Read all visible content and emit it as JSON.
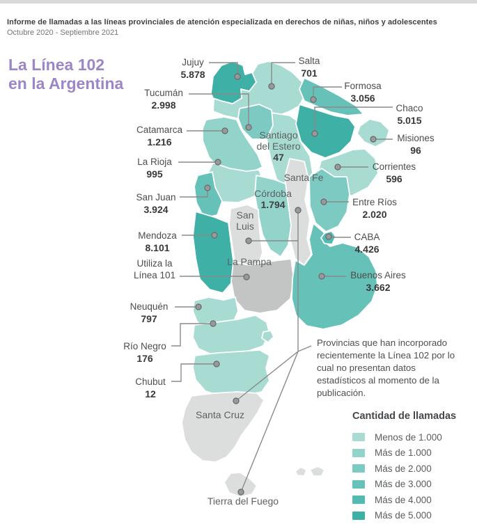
{
  "header": {
    "report_title": "Informe de llamadas a las líneas provinciales de atención especializada en derechos de niñas, niños y adolescentes",
    "period": "Octubre 2020 - Septiembre 2021"
  },
  "title": {
    "line1": "La Línea 102",
    "line2": "en la Argentina"
  },
  "colors": {
    "title_purple": "#9d86c8",
    "no_data_light": "#dcdddd",
    "no_data_dark": "#c3c4c4",
    "leader_line": "#8a8a8a",
    "dot_fill": "#98999a",
    "dot_border": "#6f7071",
    "region_border": "#ffffff"
  },
  "map": {
    "provinces": [
      {
        "id": "jujuy",
        "name": "Jujuy",
        "value": "5.878",
        "category": "gt5000",
        "label": "callout"
      },
      {
        "id": "salta",
        "name": "Salta",
        "value": "701",
        "category": "lt1000",
        "label": "callout"
      },
      {
        "id": "tucuman",
        "name": "Tucumán",
        "value": "2.998",
        "category": "gt2000",
        "label": "callout"
      },
      {
        "id": "formosa",
        "name": "Formosa",
        "value": "3.056",
        "category": "gt3000",
        "label": "callout"
      },
      {
        "id": "chaco",
        "name": "Chaco",
        "value": "5.015",
        "category": "gt5000",
        "label": "callout"
      },
      {
        "id": "catamarca",
        "name": "Catamarca",
        "value": "1.216",
        "category": "gt1000",
        "label": "callout"
      },
      {
        "id": "misiones",
        "name": "Misiones",
        "value": "96",
        "category": "lt1000",
        "label": "callout"
      },
      {
        "id": "santiago-del-estero",
        "name": "Santiago\ndel Estero",
        "value": "47",
        "category": "lt1000",
        "label": "on-map"
      },
      {
        "id": "la-rioja",
        "name": "La Rioja",
        "value": "995",
        "category": "lt1000",
        "label": "callout"
      },
      {
        "id": "corrientes",
        "name": "Corrientes",
        "value": "596",
        "category": "lt1000",
        "label": "callout"
      },
      {
        "id": "santa-fe",
        "name": "Santa Fe",
        "category": "no-data-light",
        "label": "on-map"
      },
      {
        "id": "san-juan",
        "name": "San Juan",
        "value": "3.924",
        "category": "gt3000",
        "label": "callout"
      },
      {
        "id": "cordoba",
        "name": "Córdoba",
        "value": "1.794",
        "category": "gt1000",
        "label": "on-map"
      },
      {
        "id": "entre-rios",
        "name": "Entre Ríos",
        "value": "2.020",
        "category": "gt2000",
        "label": "callout"
      },
      {
        "id": "san-luis",
        "name": "San\nLuis",
        "category": "no-data-light",
        "label": "on-map"
      },
      {
        "id": "mendoza",
        "name": "Mendoza",
        "value": "8.101",
        "category": "gt5000",
        "label": "callout"
      },
      {
        "id": "caba",
        "name": "CABA",
        "value": "4.426",
        "category": "gt4000",
        "label": "callout"
      },
      {
        "id": "la-pampa",
        "name": "La Pampa",
        "category": "no-data-dark",
        "label": "on-map"
      },
      {
        "id": "buenos-aires",
        "name": "Buenos Aires",
        "value": "3.662",
        "category": "gt3000",
        "label": "callout"
      },
      {
        "id": "neuquen",
        "name": "Neuquén",
        "value": "797",
        "category": "lt1000",
        "label": "callout"
      },
      {
        "id": "rio-negro",
        "name": "Río Negro",
        "value": "176",
        "category": "lt1000",
        "label": "callout"
      },
      {
        "id": "chubut",
        "name": "Chubut",
        "value": "12",
        "category": "lt1000",
        "label": "callout"
      },
      {
        "id": "santa-cruz",
        "name": "Santa Cruz",
        "category": "no-data-light",
        "label": "on-map"
      },
      {
        "id": "tierra-del-fuego",
        "name": "Tierra del Fuego",
        "category": "no-data-light",
        "label": "on-map"
      },
      {
        "id": "islas-malvinas",
        "name": "",
        "category": "no-data-light",
        "label": "none"
      }
    ],
    "special_callout": {
      "id": "linea-101",
      "line1": "Utiliza la",
      "line2": "Línea 101",
      "points_to": "la-pampa"
    }
  },
  "note": {
    "text": "Provincias que han incorporado recientemente la Línea 102 por lo cual no presentan datos estadísticos al momento de la publicación."
  },
  "legend": {
    "title": "Cantidad de llamadas",
    "items": [
      {
        "category": "lt1000",
        "label": "Menos de 1.000",
        "color": "#a8dcd3"
      },
      {
        "category": "gt1000",
        "label": "Más de 1.000",
        "color": "#92d3ca"
      },
      {
        "category": "gt2000",
        "label": "Más de 2.000",
        "color": "#7ccac2"
      },
      {
        "category": "gt3000",
        "label": "Más de 3.000",
        "color": "#66c2b9"
      },
      {
        "category": "gt4000",
        "label": "Más de 4.000",
        "color": "#53bab0"
      },
      {
        "category": "gt5000",
        "label": "Más de 5.000",
        "color": "#3eb0a6"
      }
    ]
  }
}
